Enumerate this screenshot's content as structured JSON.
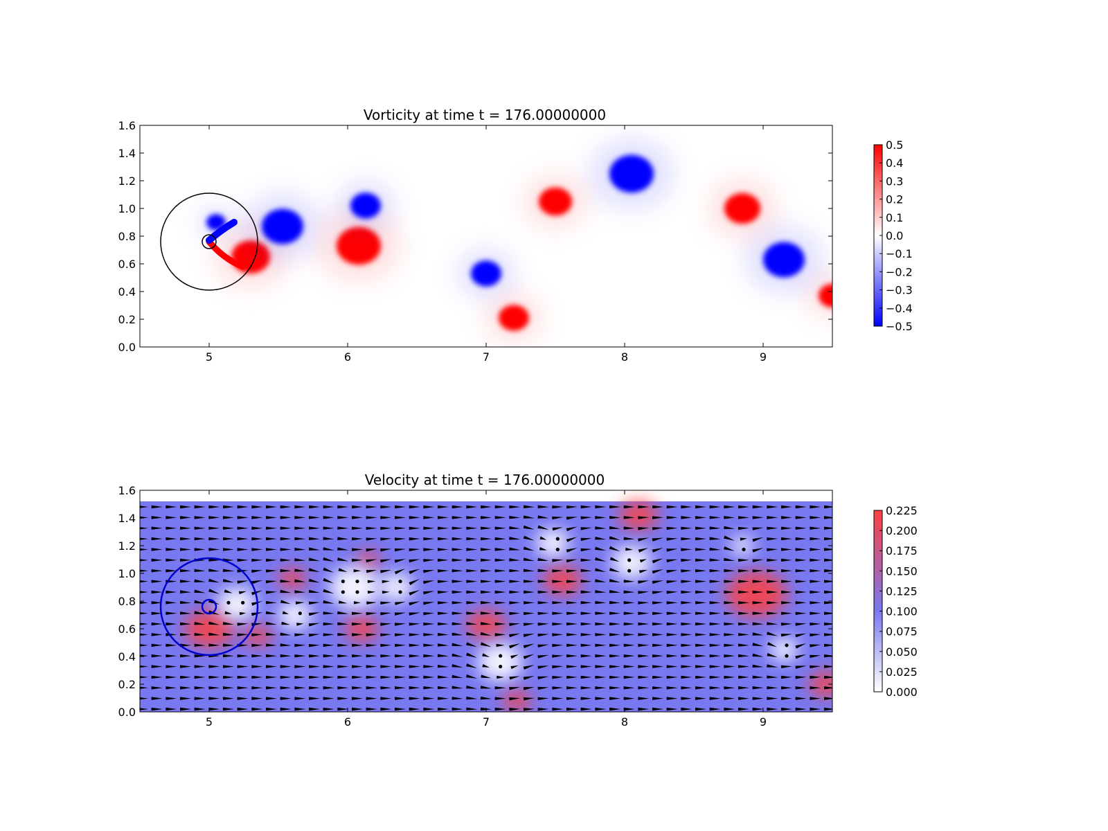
{
  "figure": {
    "background": "#ffffff"
  },
  "chart_data": [
    {
      "type": "heatmap",
      "title": "Vorticity at time t =   176.00000000",
      "xlim": [
        4.5,
        9.5
      ],
      "ylim": [
        0.0,
        1.6
      ],
      "xticks": [
        "5",
        "6",
        "7",
        "8",
        "9"
      ],
      "yticks": [
        "0.0",
        "0.2",
        "0.4",
        "0.6",
        "0.8",
        "1.0",
        "1.2",
        "1.4",
        "1.6"
      ],
      "colormap": "bwr",
      "colorbar": {
        "min": -0.5,
        "max": 0.5,
        "ticks": [
          "0.5",
          "0.4",
          "0.3",
          "0.2",
          "0.1",
          "0.0",
          "−0.1",
          "−0.2",
          "−0.3",
          "−0.4",
          "−0.5"
        ],
        "colors": {
          "low": "#0000ff",
          "mid": "#ffffff",
          "high": "#ff0000"
        }
      },
      "vortices": [
        {
          "x": 5.05,
          "y": 0.9,
          "value": -0.5,
          "r": 0.07
        },
        {
          "x": 5.3,
          "y": 0.65,
          "value": 0.5,
          "r": 0.14
        },
        {
          "x": 5.53,
          "y": 0.87,
          "value": -0.5,
          "r": 0.15
        },
        {
          "x": 6.08,
          "y": 0.73,
          "value": 0.5,
          "r": 0.16
        },
        {
          "x": 6.13,
          "y": 1.02,
          "value": -0.5,
          "r": 0.11
        },
        {
          "x": 7.0,
          "y": 0.53,
          "value": -0.5,
          "r": 0.11
        },
        {
          "x": 7.2,
          "y": 0.21,
          "value": 0.5,
          "r": 0.11
        },
        {
          "x": 7.5,
          "y": 1.05,
          "value": 0.5,
          "r": 0.12
        },
        {
          "x": 8.05,
          "y": 1.25,
          "value": -0.5,
          "r": 0.16
        },
        {
          "x": 8.85,
          "y": 1.0,
          "value": 0.5,
          "r": 0.13
        },
        {
          "x": 9.15,
          "y": 0.63,
          "value": -0.5,
          "r": 0.15
        },
        {
          "x": 9.5,
          "y": 0.37,
          "value": 0.5,
          "r": 0.1
        }
      ],
      "circles": [
        {
          "x": 5.0,
          "y": 0.76,
          "r": 0.35,
          "color": "#000000"
        },
        {
          "x": 5.0,
          "y": 0.76,
          "r": 0.05,
          "color": "#000000"
        }
      ]
    },
    {
      "type": "heatmap",
      "title": "Velocity at time t =   176.00000000",
      "xlim": [
        4.5,
        9.5
      ],
      "ylim": [
        0.0,
        1.6
      ],
      "xticks": [
        "5",
        "6",
        "7",
        "8",
        "9"
      ],
      "yticks": [
        "0.0",
        "0.2",
        "0.4",
        "0.6",
        "0.8",
        "1.0",
        "1.2",
        "1.4",
        "1.6"
      ],
      "field_ylim": [
        0.0,
        1.52
      ],
      "colormap": "white-blue-red",
      "colorbar": {
        "min": 0.0,
        "max": 0.225,
        "ticks": [
          "0.225",
          "0.200",
          "0.175",
          "0.150",
          "0.125",
          "0.100",
          "0.075",
          "0.050",
          "0.025",
          "0.000"
        ],
        "colors": {
          "low": "#ffffff",
          "mid": "#7878f0",
          "high": "#ff4040"
        }
      },
      "base_speed": 0.1,
      "slow_regions": [
        {
          "x": 5.2,
          "y": 0.78,
          "r": 0.14
        },
        {
          "x": 5.62,
          "y": 0.7,
          "r": 0.12
        },
        {
          "x": 6.05,
          "y": 0.9,
          "r": 0.18
        },
        {
          "x": 6.35,
          "y": 0.9,
          "r": 0.12
        },
        {
          "x": 7.1,
          "y": 0.36,
          "r": 0.16
        },
        {
          "x": 7.48,
          "y": 1.22,
          "r": 0.12
        },
        {
          "x": 8.05,
          "y": 1.08,
          "r": 0.14
        },
        {
          "x": 8.85,
          "y": 1.2,
          "r": 0.08
        },
        {
          "x": 9.15,
          "y": 0.45,
          "r": 0.1
        }
      ],
      "fast_regions": [
        {
          "x": 5.0,
          "y": 0.6,
          "r": 0.18
        },
        {
          "x": 5.35,
          "y": 0.55,
          "r": 0.1
        },
        {
          "x": 5.6,
          "y": 0.96,
          "r": 0.1
        },
        {
          "x": 6.1,
          "y": 0.6,
          "r": 0.12
        },
        {
          "x": 6.15,
          "y": 1.1,
          "r": 0.08
        },
        {
          "x": 7.0,
          "y": 0.63,
          "r": 0.14
        },
        {
          "x": 7.22,
          "y": 0.08,
          "r": 0.1
        },
        {
          "x": 7.55,
          "y": 0.95,
          "r": 0.14
        },
        {
          "x": 8.1,
          "y": 1.42,
          "r": 0.14
        },
        {
          "x": 8.95,
          "y": 0.85,
          "r": 0.22
        },
        {
          "x": 9.45,
          "y": 0.2,
          "r": 0.12
        }
      ],
      "circles": [
        {
          "x": 5.0,
          "y": 0.76,
          "r": 0.35,
          "color": "#0000cc"
        },
        {
          "x": 5.0,
          "y": 0.76,
          "r": 0.05,
          "color": "#0000cc"
        }
      ]
    }
  ]
}
